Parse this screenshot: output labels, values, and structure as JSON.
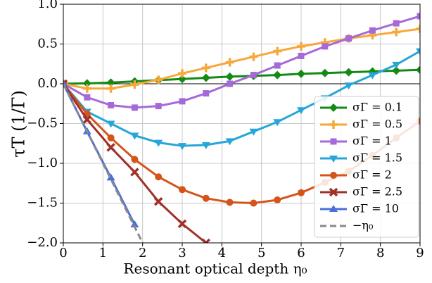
{
  "chart_data": {
    "type": "line",
    "ylabel": "τT (1/Γ)",
    "xlabel": "Resonant optical depth η₀",
    "x": [
      0,
      0.6,
      1.2,
      1.8,
      2.4,
      3.0,
      3.6,
      4.2,
      4.8,
      5.4,
      6.0,
      6.6,
      7.2,
      7.8,
      8.4,
      9.0
    ],
    "xlim": [
      0,
      9
    ],
    "xticks": [
      0,
      1,
      2,
      3,
      4,
      5,
      6,
      7,
      8,
      9
    ],
    "ylim": [
      -2,
      1
    ],
    "yticks": [
      {
        "value": -2,
        "label": "−2.0"
      },
      {
        "value": -1.5,
        "label": "−1.5"
      },
      {
        "value": -1,
        "label": "−1.0"
      },
      {
        "value": -0.5,
        "label": "−0.5"
      },
      {
        "value": 0,
        "label": "0.0"
      },
      {
        "value": 0.5,
        "label": "0.5"
      },
      {
        "value": 1,
        "label": "1.0"
      }
    ],
    "grid": true,
    "legend": "lower right",
    "series": [
      {
        "name": "σΓ = 0.1",
        "color": "#148a14",
        "marker": "diamond",
        "values": [
          0,
          0.005,
          0.015,
          0.03,
          0.045,
          0.06,
          0.075,
          0.09,
          0.1,
          0.11,
          0.125,
          0.135,
          0.145,
          0.155,
          0.165,
          0.175
        ]
      },
      {
        "name": "σΓ = 0.5",
        "color": "#f7a83a",
        "marker": "plus",
        "values": [
          0,
          -0.06,
          -0.06,
          -0.01,
          0.05,
          0.13,
          0.2,
          0.27,
          0.34,
          0.41,
          0.47,
          0.52,
          0.57,
          0.61,
          0.65,
          0.69
        ]
      },
      {
        "name": "σΓ = 1",
        "color": "#a56ad8",
        "marker": "square",
        "values": [
          0,
          -0.17,
          -0.27,
          -0.3,
          -0.28,
          -0.22,
          -0.12,
          0.0,
          0.11,
          0.23,
          0.35,
          0.47,
          0.57,
          0.67,
          0.76,
          0.85
        ]
      },
      {
        "name": "σΓ = 1.5",
        "color": "#27a6d8",
        "marker": "tri-down",
        "values": [
          0,
          -0.35,
          -0.5,
          -0.65,
          -0.74,
          -0.78,
          -0.77,
          -0.72,
          -0.6,
          -0.48,
          -0.33,
          -0.18,
          -0.02,
          0.11,
          0.24,
          0.41
        ]
      },
      {
        "name": "σΓ = 2",
        "color": "#d4541a",
        "marker": "circle",
        "values": [
          0,
          -0.38,
          -0.68,
          -0.95,
          -1.17,
          -1.33,
          -1.44,
          -1.49,
          -1.5,
          -1.46,
          -1.37,
          -1.24,
          -1.1,
          -0.9,
          -0.68,
          -0.47
        ]
      },
      {
        "name": "σΓ = 2.5",
        "color": "#a0302a",
        "marker": "x",
        "values": [
          0,
          -0.45,
          -0.8,
          -1.11,
          -1.48,
          -1.76,
          -2.0,
          null,
          null,
          null,
          null,
          null,
          null,
          null,
          null,
          null
        ]
      },
      {
        "name": "σΓ = 10",
        "color": "#4a70d8",
        "marker": "tri-up",
        "values": [
          0,
          -0.6,
          -1.18,
          -1.77,
          null,
          null,
          null,
          null,
          null,
          null,
          null,
          null,
          null,
          null,
          null,
          null
        ]
      },
      {
        "name": "−η₀",
        "color": "#8a8a8a",
        "dashed": true,
        "x": [
          0,
          2
        ],
        "values": [
          0,
          -2
        ]
      }
    ]
  }
}
